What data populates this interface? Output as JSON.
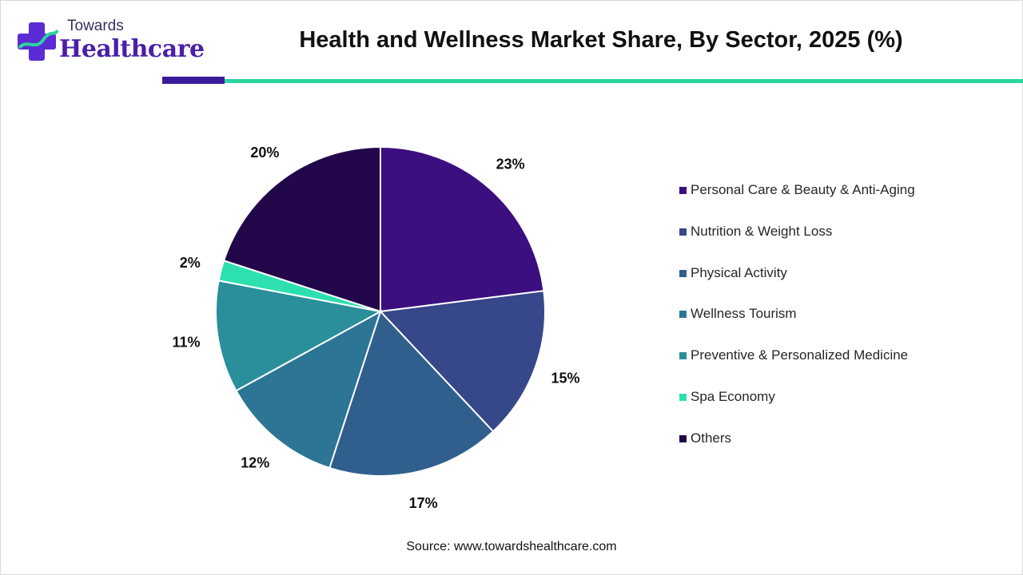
{
  "brand": {
    "line1": "Towards",
    "line2": "Healthcare"
  },
  "title": "Health and Wellness Market Share, By Sector, 2025 (%)",
  "source": "Source: www.towardshealthcare.com",
  "chart_data": {
    "type": "pie",
    "title": "Health and Wellness Market Share, By Sector, 2025 (%)",
    "legend_position": "right",
    "slices": [
      {
        "label": "Personal Care & Beauty & Anti-Aging",
        "value": 23,
        "display": "23%",
        "color": "#3b0f7f"
      },
      {
        "label": "Nutrition & Weight Loss",
        "value": 15,
        "display": "15%",
        "color": "#36478a"
      },
      {
        "label": "Physical Activity",
        "value": 17,
        "display": "17%",
        "color": "#305f8d"
      },
      {
        "label": "Wellness Tourism",
        "value": 12,
        "display": "12%",
        "color": "#2c7595"
      },
      {
        "label": "Preventive & Personalized Medicine",
        "value": 11,
        "display": "11%",
        "color": "#2a8f9b"
      },
      {
        "label": "Spa Economy",
        "value": 2,
        "display": "2%",
        "color": "#2de0b0"
      },
      {
        "label": "Others",
        "value": 20,
        "display": "20%",
        "color": "#22084a"
      }
    ]
  }
}
